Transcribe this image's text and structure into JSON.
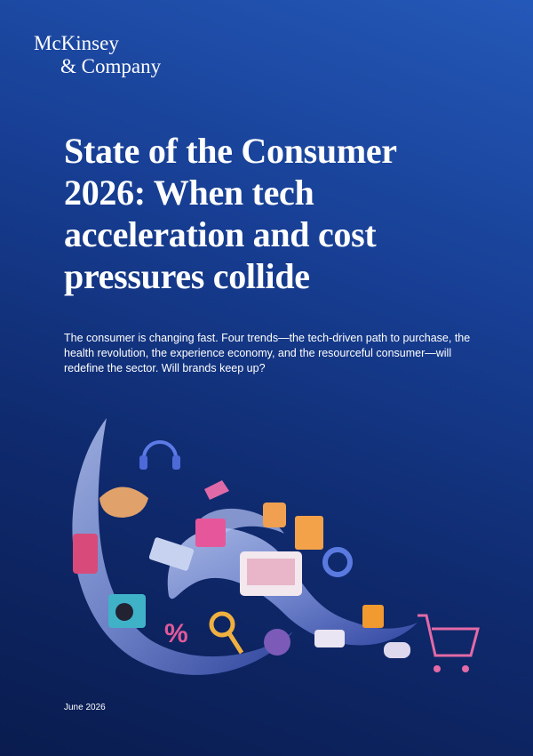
{
  "logo": {
    "lines": [
      "McKinsey",
      "& Company"
    ]
  },
  "title_lines": [
    "State of the Consumer",
    "2026: When tech",
    "acceleration and cost",
    "pressures collide"
  ],
  "subtitle": "The consumer is changing fast. Four trends—the tech-driven path to purchase, the health revolution, the experience economy, and the resourceful consumer—will redefine the sector. Will brands keep up?",
  "date": "June 2026"
}
